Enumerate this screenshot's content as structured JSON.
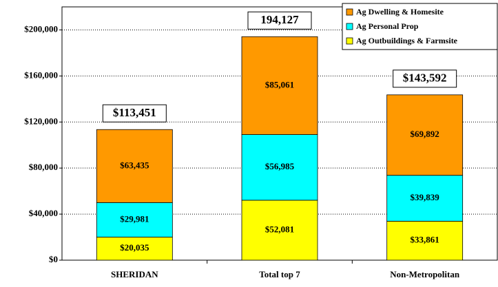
{
  "chart_data": {
    "type": "stacked_bar",
    "categories": [
      "SHERIDAN",
      "Total top 7",
      "Non-Metropolitan"
    ],
    "series": [
      {
        "name": "Ag Outbuildings & Farmsite",
        "color": "#ffff00",
        "values": [
          20035,
          52081,
          33861
        ],
        "value_labels": [
          "$20,035",
          "$52,081",
          "$33,861"
        ]
      },
      {
        "name": "Ag Personal Prop",
        "color": "#00ffff",
        "values": [
          29981,
          56985,
          39839
        ],
        "value_labels": [
          "$29,981",
          "$56,985",
          "$39,839"
        ]
      },
      {
        "name": "Ag Dwelling & Homesite",
        "color": "#ff9900",
        "values": [
          63435,
          85061,
          69892
        ],
        "value_labels": [
          "$63,435",
          "$85,061",
          "$69,892"
        ]
      }
    ],
    "totals": [
      113451,
      194127,
      143592
    ],
    "total_labels": [
      "$113,451",
      "194,127",
      "$143,592"
    ],
    "ylim": [
      0,
      220000
    ],
    "yticks": [
      {
        "value": 0,
        "label": "$0"
      },
      {
        "value": 40000,
        "label": "$40,000"
      },
      {
        "value": 80000,
        "label": "$80,000"
      },
      {
        "value": 120000,
        "label": "$120,000"
      },
      {
        "value": 160000,
        "label": "$160,000"
      },
      {
        "value": 200000,
        "label": "$200,000"
      }
    ],
    "grid": true,
    "legend": "top-right"
  }
}
